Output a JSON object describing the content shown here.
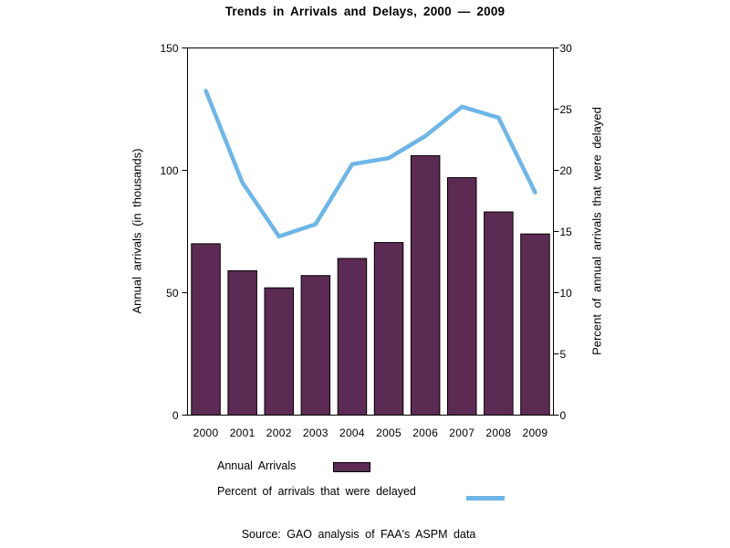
{
  "title": "Trends in Arrivals and Delays, 2000 — 2009",
  "source_note": "Source: GAO analysis of FAA's ASPM data",
  "legend": {
    "bar_label": "Annual Arrivals",
    "line_label": "Percent of arrivals that were delayed"
  },
  "colors": {
    "bar_fill": "#5c2b53",
    "bar_border": "#000000",
    "line": "#6eb6e8",
    "axis": "#000000",
    "text": "#000000",
    "background": "#ffffff"
  },
  "chart_data": {
    "type": "combo-bar-line",
    "categories": [
      "2000",
      "2001",
      "2002",
      "2003",
      "2004",
      "2005",
      "2006",
      "2007",
      "2008",
      "2009"
    ],
    "series": [
      {
        "name": "Annual Arrivals",
        "type": "bar",
        "axis": "left",
        "values": [
          70,
          59,
          52,
          57,
          64,
          70.5,
          106,
          97,
          83,
          74
        ]
      },
      {
        "name": "Percent of arrivals that were delayed",
        "type": "line",
        "axis": "right",
        "values": [
          26.5,
          19,
          14.6,
          15.6,
          20.5,
          21,
          22.8,
          25.2,
          24.3,
          18.2
        ]
      }
    ],
    "title": "Trends in Arrivals and Delays, 2000 — 2009",
    "left_axis": {
      "label": "Annual arrivals (in thousands)",
      "range": [
        0,
        150
      ],
      "ticks": [
        0,
        50,
        100,
        150
      ]
    },
    "right_axis": {
      "label": "Percent of annual arrivals that were delayed",
      "range": [
        0,
        30
      ],
      "ticks": [
        0,
        5,
        10,
        15,
        20,
        25,
        30
      ]
    },
    "grid": false,
    "legend_position": "below-plot-left"
  }
}
